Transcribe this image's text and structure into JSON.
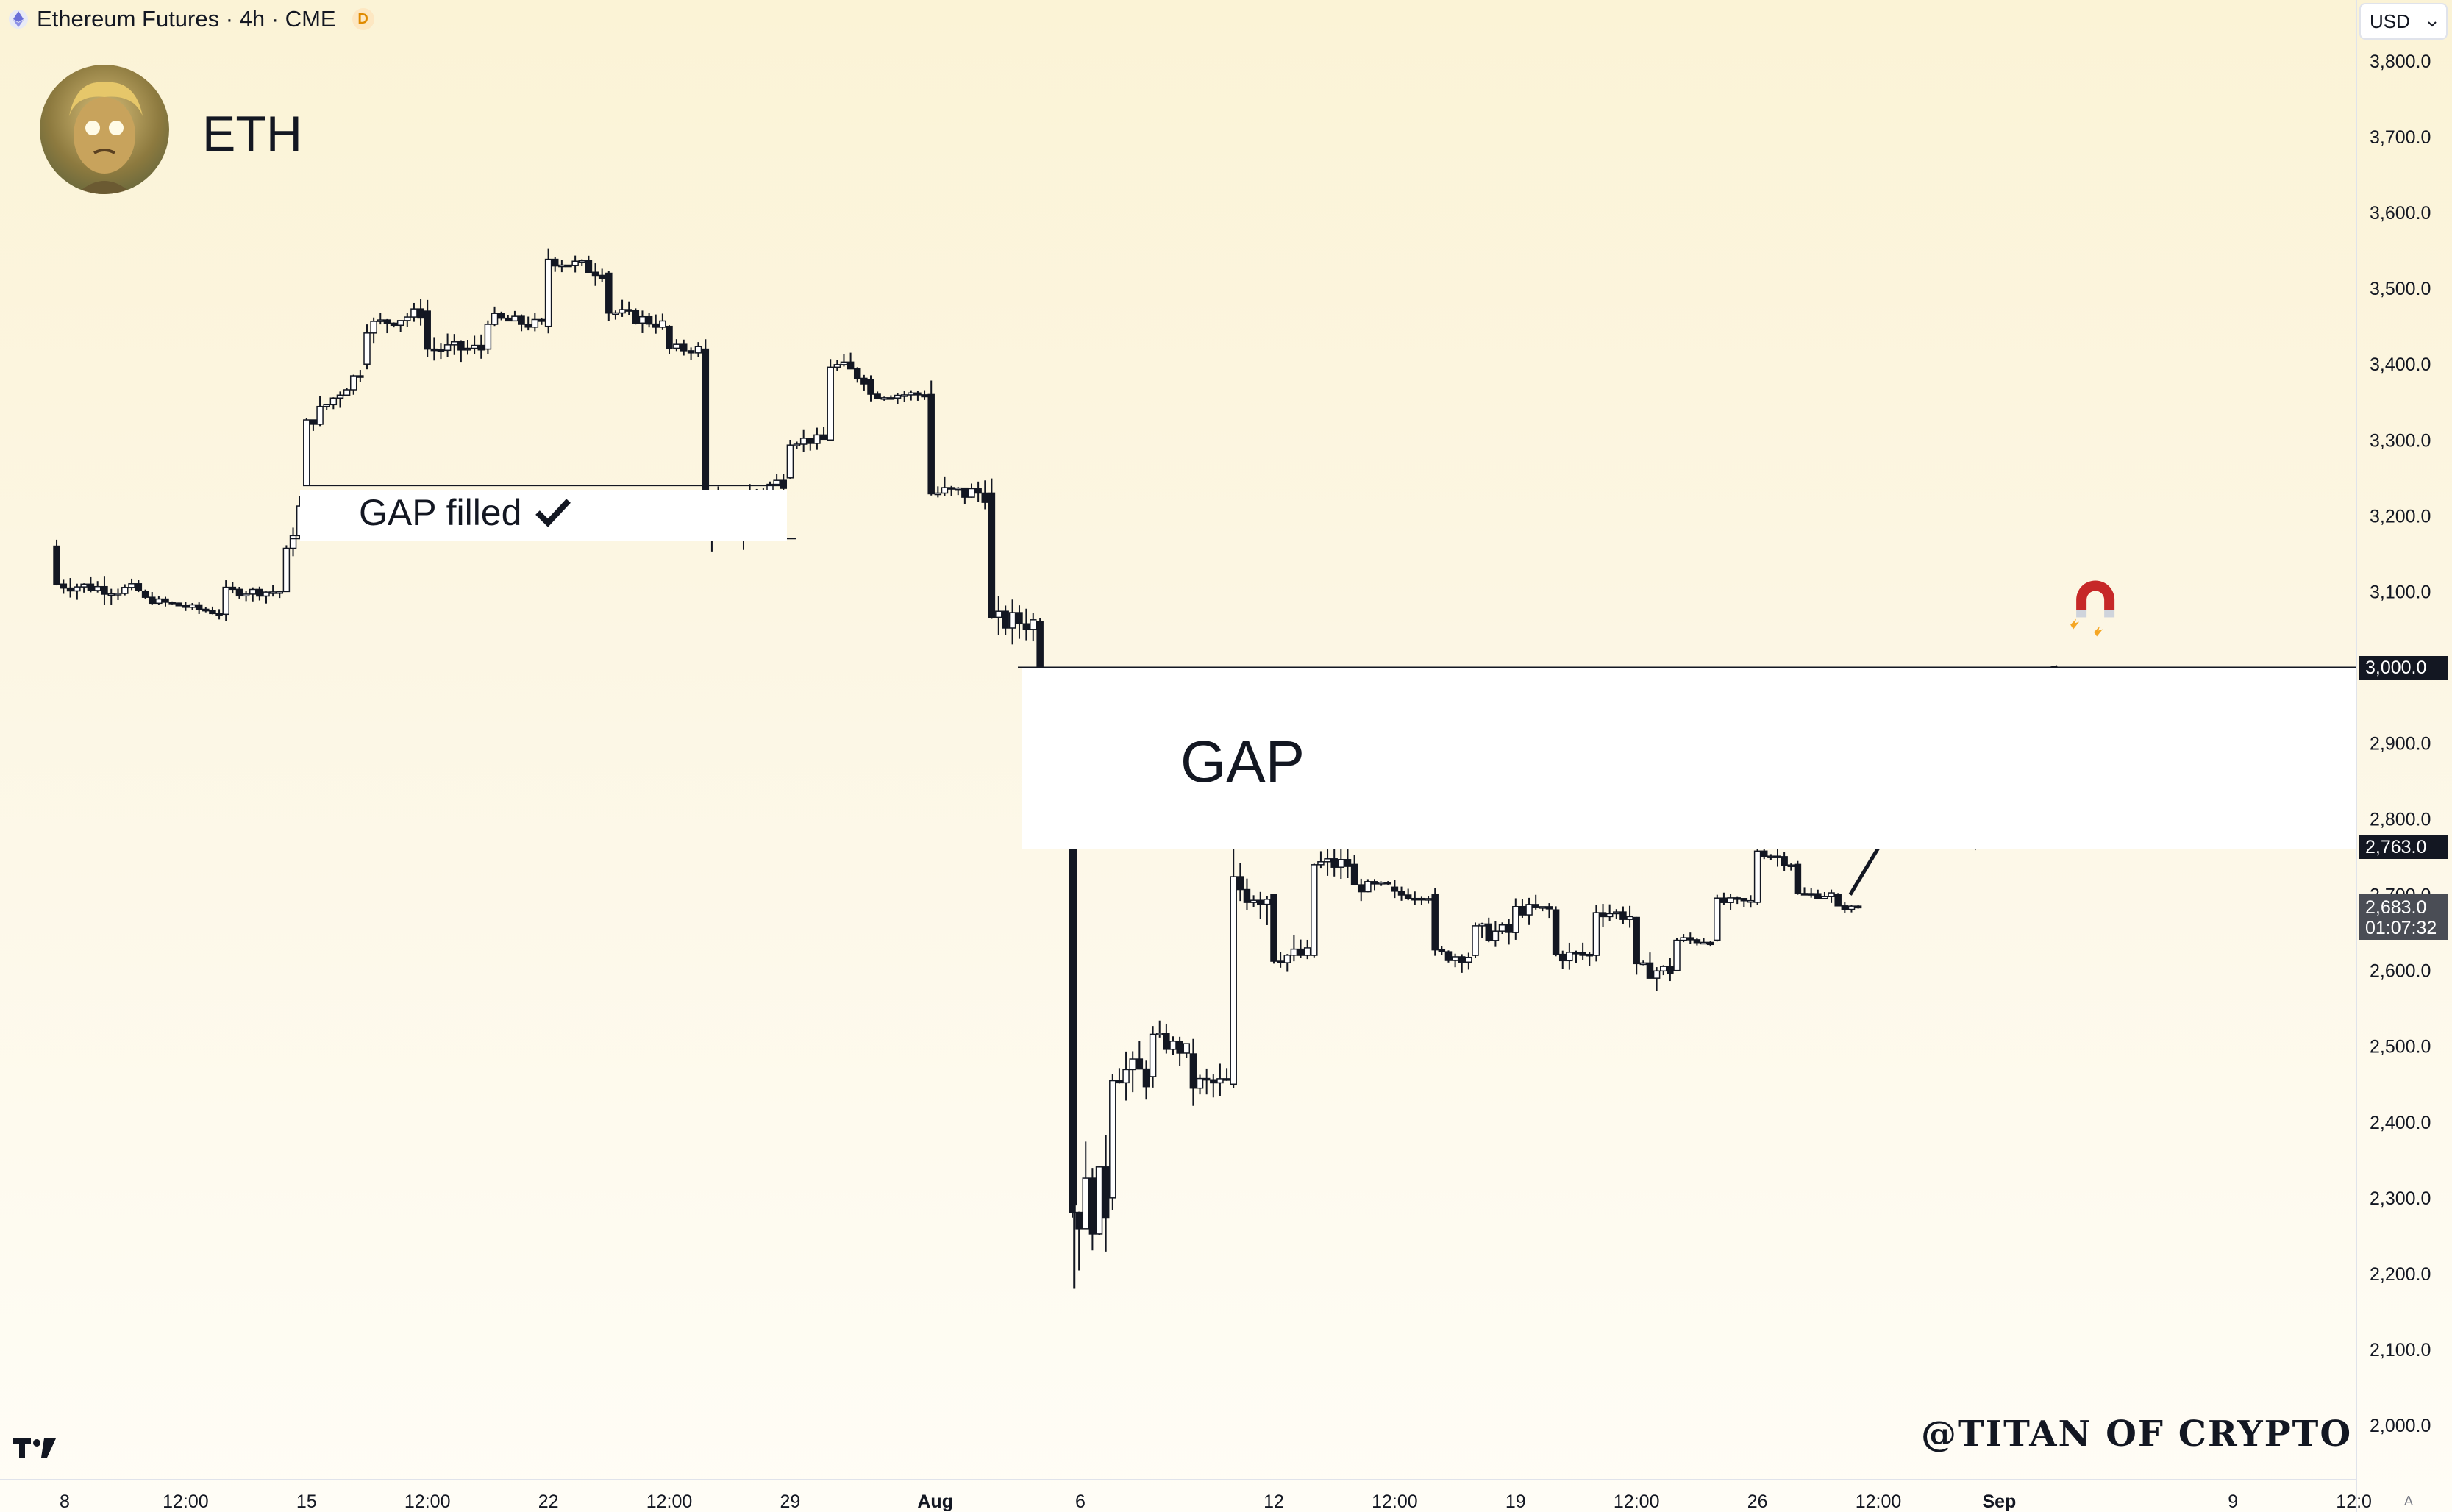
{
  "header": {
    "symbol_title": "Ethereum Futures · 4h · CME",
    "badge": "D",
    "asset_label": "ETH",
    "currency": "USD"
  },
  "annotations": {
    "gap_label": "GAP",
    "gap_filled_label": "GAP filled",
    "watermark": "@TITAN OF CRYPTO",
    "auto_button": "A"
  },
  "price_tags": {
    "upper_gap": "3,000.0",
    "lower_gap": "2,763.0",
    "current_price": "2,683.0",
    "countdown": "01:07:32"
  },
  "colors": {
    "candle": "#131722",
    "background_top": "#fbf3d6",
    "background_bottom": "#fffdf6",
    "magnet_red": "#c62828"
  },
  "icons": [
    "ethereum-icon",
    "magnet-icon",
    "tradingview-logo-icon",
    "checkmark-icon",
    "chevron-down-icon"
  ],
  "chart_data": {
    "type": "candlestick",
    "title": "Ethereum Futures · 4h · CME",
    "ylim": [
      1950,
      3850
    ],
    "y_ticks": [
      "3,800.0",
      "3,700.0",
      "3,600.0",
      "3,500.0",
      "3,400.0",
      "3,300.0",
      "3,200.0",
      "3,100.0",
      "3,000.0",
      "2,900.0",
      "2,800.0",
      "2,700.0",
      "2,600.0",
      "2,500.0",
      "2,400.0",
      "2,300.0",
      "2,200.0",
      "2,100.0",
      "2,000.0"
    ],
    "y_tick_values": [
      3800,
      3700,
      3600,
      3500,
      3400,
      3300,
      3200,
      3100,
      3000,
      2900,
      2800,
      2700,
      2600,
      2500,
      2400,
      2300,
      2200,
      2100,
      2000
    ],
    "x_ticks": [
      {
        "label": "8",
        "bar": 0
      },
      {
        "label": "12:00",
        "bar": 3
      },
      {
        "label": "15",
        "bar": 6
      },
      {
        "label": "12:00",
        "bar": 9
      },
      {
        "label": "22",
        "bar": 12
      },
      {
        "label": "12:00",
        "bar": 15
      },
      {
        "label": "29",
        "bar": 18
      },
      {
        "label": "Aug",
        "bar": 21.6,
        "bold": true
      },
      {
        "label": "6",
        "bar": 25.2
      },
      {
        "label": "12",
        "bar": 30
      },
      {
        "label": "12:00",
        "bar": 33
      },
      {
        "label": "19",
        "bar": 36
      },
      {
        "label": "12:00",
        "bar": 39
      },
      {
        "label": "26",
        "bar": 42
      },
      {
        "label": "12:00",
        "bar": 45
      },
      {
        "label": "Sep",
        "bar": 48,
        "bold": true
      },
      {
        "label": "9",
        "bar": 53.8
      },
      {
        "label": "12:0",
        "bar": 56.8
      }
    ],
    "x_tick_note": "bar index in daily units starting at Jul 8",
    "gap_zones": [
      {
        "name": "gap_filled",
        "low": 3170,
        "high": 3240
      },
      {
        "name": "open_gap",
        "low": 2763,
        "high": 3000
      }
    ],
    "projection_path": [
      [
        44.3,
        2700
      ],
      [
        46.0,
        2850
      ],
      [
        47.4,
        2763
      ],
      [
        49.4,
        3000
      ]
    ],
    "levels": [
      {
        "segments": [
          [
            -0.2,
            3160,
            3190,
            3070,
            3110
          ],
          [
            2.0,
            3100,
            3130,
            3070,
            3090
          ],
          [
            4.0,
            3070,
            3140,
            3060,
            3100
          ],
          [
            5.5,
            3100,
            3170,
            3050,
            3150
          ],
          [
            6.0,
            3240,
            3360,
            3230,
            3320
          ],
          [
            7.5,
            3400,
            3490,
            3370,
            3450
          ],
          [
            9.0,
            3470,
            3520,
            3390,
            3420
          ],
          [
            10.5,
            3420,
            3490,
            3380,
            3460
          ],
          [
            12.0,
            3450,
            3570,
            3440,
            3540
          ],
          [
            13.5,
            3520,
            3540,
            3430,
            3470
          ],
          [
            15.0,
            3450,
            3470,
            3380,
            3420
          ],
          [
            15.9,
            3420,
            3440,
            3170,
            3200
          ],
          [
            17.0,
            3190,
            3250,
            3110,
            3230
          ],
          [
            18.0,
            3250,
            3320,
            3230,
            3300
          ],
          [
            19.0,
            3300,
            3430,
            3290,
            3400
          ],
          [
            20.0,
            3380,
            3410,
            3330,
            3360
          ],
          [
            21.5,
            3360,
            3370,
            3200,
            3230
          ],
          [
            23.0,
            3230,
            3240,
            3040,
            3060
          ],
          [
            24.2,
            3060,
            3080,
            2990,
            3000
          ],
          [
            25.0,
            2763,
            2770,
            2180,
            2290
          ],
          [
            26.0,
            2300,
            2520,
            2250,
            2470
          ],
          [
            27.0,
            2460,
            2560,
            2410,
            2510
          ],
          [
            28.0,
            2490,
            2520,
            2330,
            2450
          ],
          [
            29.0,
            2450,
            2750,
            2430,
            2710
          ],
          [
            30.0,
            2700,
            2720,
            2560,
            2620
          ],
          [
            31.0,
            2620,
            2770,
            2600,
            2740
          ],
          [
            32.0,
            2740,
            2770,
            2670,
            2710
          ],
          [
            33.0,
            2710,
            2780,
            2690,
            2700
          ],
          [
            34.0,
            2700,
            2720,
            2600,
            2620
          ],
          [
            35.0,
            2620,
            2680,
            2520,
            2650
          ],
          [
            36.0,
            2650,
            2710,
            2600,
            2680
          ],
          [
            37.0,
            2680,
            2720,
            2590,
            2620
          ],
          [
            38.0,
            2620,
            2700,
            2580,
            2680
          ],
          [
            39.0,
            2670,
            2690,
            2550,
            2600
          ],
          [
            40.0,
            2600,
            2660,
            2580,
            2640
          ],
          [
            41.0,
            2640,
            2700,
            2620,
            2690
          ],
          [
            42.0,
            2690,
            2790,
            2680,
            2760
          ],
          [
            43.0,
            2740,
            2750,
            2680,
            2700
          ],
          [
            44.0,
            2700,
            2710,
            2670,
            2683
          ]
        ]
      }
    ],
    "last_price": 2683.0,
    "countdown": "01:07:32"
  }
}
